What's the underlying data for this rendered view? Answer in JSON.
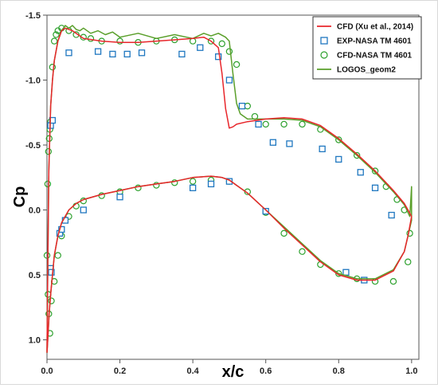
{
  "chart_data": {
    "type": "line",
    "xlabel": "x/c",
    "ylabel": "Cp",
    "xlim": [
      0,
      1.02
    ],
    "ylim": [
      -1.5,
      1.15
    ],
    "y_reversed": true,
    "x_ticks": [
      0,
      0.2,
      0.4,
      0.6,
      0.8,
      1.0
    ],
    "x_tick_labels": [
      "0.0",
      "0.2",
      "0.4",
      "0.6",
      "0.8",
      "1.0"
    ],
    "y_ticks": [
      -1.5,
      -1.0,
      -0.5,
      0.0,
      0.5,
      1.0
    ],
    "y_tick_labels": [
      "-1.5",
      "-1.0",
      "-0.5",
      "0.0",
      "0.5",
      "1.0"
    ],
    "grid": false,
    "legend_placement": "top-right",
    "series": [
      {
        "name": "CFD (Xu et al., 2014)",
        "kind": "line",
        "color": "#e8262b",
        "x": [
          0.0,
          0.002,
          0.005,
          0.01,
          0.015,
          0.02,
          0.03,
          0.04,
          0.05,
          0.07,
          0.1,
          0.15,
          0.2,
          0.25,
          0.3,
          0.35,
          0.4,
          0.43,
          0.45,
          0.47,
          0.48,
          0.49,
          0.5,
          0.51,
          0.52,
          0.55,
          0.6,
          0.65,
          0.7,
          0.75,
          0.8,
          0.85,
          0.9,
          0.95,
          0.98,
          0.99,
          1.0,
          1.0,
          0.99,
          0.98,
          0.95,
          0.9,
          0.85,
          0.8,
          0.75,
          0.7,
          0.65,
          0.6,
          0.55,
          0.52,
          0.5,
          0.48,
          0.45,
          0.4,
          0.35,
          0.3,
          0.25,
          0.2,
          0.15,
          0.1,
          0.08,
          0.06,
          0.04,
          0.03,
          0.02,
          0.015,
          0.01,
          0.006,
          0.003,
          0.001,
          0.0
        ],
        "y": [
          1.1,
          0.5,
          -0.3,
          -0.8,
          -1.0,
          -1.15,
          -1.3,
          -1.38,
          -1.4,
          -1.38,
          -1.32,
          -1.3,
          -1.29,
          -1.29,
          -1.3,
          -1.31,
          -1.32,
          -1.33,
          -1.3,
          -1.25,
          -1.05,
          -0.78,
          -0.63,
          -0.64,
          -0.66,
          -0.68,
          -0.7,
          -0.71,
          -0.7,
          -0.65,
          -0.55,
          -0.43,
          -0.3,
          -0.15,
          -0.05,
          0.0,
          0.05,
          0.05,
          0.2,
          0.32,
          0.47,
          0.54,
          0.54,
          0.5,
          0.4,
          0.27,
          0.14,
          0.0,
          -0.13,
          -0.19,
          -0.23,
          -0.25,
          -0.26,
          -0.25,
          -0.22,
          -0.2,
          -0.18,
          -0.15,
          -0.12,
          -0.08,
          -0.05,
          0.0,
          0.1,
          0.2,
          0.35,
          0.5,
          0.65,
          0.8,
          0.95,
          1.05,
          1.1
        ]
      },
      {
        "name": "EXP-NASA TM 4601",
        "kind": "square",
        "color": "#1f77c0",
        "x": [
          0.01,
          0.015,
          0.06,
          0.14,
          0.18,
          0.22,
          0.26,
          0.37,
          0.42,
          0.47,
          0.5,
          0.535,
          0.58,
          0.62,
          0.665,
          0.755,
          0.8,
          0.86,
          0.9,
          0.945,
          0.01,
          0.012,
          0.035,
          0.04,
          0.05,
          0.1,
          0.2,
          0.4,
          0.45,
          0.5,
          0.6,
          0.82,
          0.87
        ],
        "y": [
          -0.65,
          -0.69,
          -1.21,
          -1.22,
          -1.2,
          -1.2,
          -1.21,
          -1.2,
          -1.25,
          -1.18,
          -1.0,
          -0.8,
          -0.66,
          -0.52,
          -0.51,
          -0.47,
          -0.39,
          -0.29,
          -0.17,
          0.04,
          0.45,
          0.48,
          0.18,
          0.15,
          0.08,
          0.0,
          -0.1,
          -0.17,
          -0.2,
          -0.22,
          0.01,
          0.48,
          0.54
        ]
      },
      {
        "name": "CFD-NASA TM 4601",
        "kind": "circle",
        "color": "#2ca02c",
        "x": [
          0.0,
          0.002,
          0.004,
          0.006,
          0.008,
          0.01,
          0.015,
          0.02,
          0.025,
          0.03,
          0.04,
          0.06,
          0.08,
          0.1,
          0.12,
          0.15,
          0.2,
          0.25,
          0.3,
          0.35,
          0.4,
          0.45,
          0.48,
          0.5,
          0.52,
          0.55,
          0.57,
          0.6,
          0.65,
          0.7,
          0.75,
          0.8,
          0.85,
          0.9,
          0.93,
          0.96,
          0.98,
          0.995,
          0.003,
          0.005,
          0.008,
          0.012,
          0.02,
          0.03,
          0.04,
          0.06,
          0.08,
          0.1,
          0.15,
          0.2,
          0.25,
          0.3,
          0.35,
          0.4,
          0.45,
          0.5,
          0.55,
          0.6,
          0.65,
          0.7,
          0.75,
          0.8,
          0.85,
          0.9,
          0.95,
          0.99
        ],
        "y": [
          0.35,
          -0.2,
          -0.45,
          -0.55,
          -0.62,
          -0.68,
          -1.1,
          -1.3,
          -1.35,
          -1.38,
          -1.4,
          -1.38,
          -1.35,
          -1.33,
          -1.32,
          -1.3,
          -1.3,
          -1.29,
          -1.3,
          -1.31,
          -1.3,
          -1.3,
          -1.28,
          -1.22,
          -1.12,
          -0.8,
          -0.72,
          -0.66,
          -0.66,
          -0.66,
          -0.62,
          -0.54,
          -0.42,
          -0.3,
          -0.18,
          -0.08,
          0.0,
          0.18,
          0.65,
          0.8,
          0.95,
          0.7,
          0.55,
          0.35,
          0.2,
          0.05,
          -0.03,
          -0.07,
          -0.11,
          -0.14,
          -0.17,
          -0.19,
          -0.21,
          -0.22,
          -0.23,
          -0.22,
          -0.14,
          0.02,
          0.18,
          0.32,
          0.42,
          0.49,
          0.53,
          0.55,
          0.55,
          0.4
        ]
      },
      {
        "name": "LOGOS_geom2",
        "kind": "line",
        "color": "#5a9f2a",
        "x": [
          0.0,
          0.002,
          0.005,
          0.01,
          0.015,
          0.02,
          0.03,
          0.04,
          0.05,
          0.06,
          0.07,
          0.08,
          0.09,
          0.1,
          0.12,
          0.14,
          0.16,
          0.18,
          0.2,
          0.25,
          0.3,
          0.35,
          0.4,
          0.43,
          0.45,
          0.47,
          0.49,
          0.5,
          0.51,
          0.52,
          0.53,
          0.55,
          0.6,
          0.65,
          0.7,
          0.75,
          0.8,
          0.85,
          0.9,
          0.95,
          0.98,
          0.995,
          1.0,
          1.0,
          0.99,
          0.98,
          0.95,
          0.9,
          0.85,
          0.8,
          0.75,
          0.7,
          0.65,
          0.6,
          0.55,
          0.52,
          0.5,
          0.48,
          0.45,
          0.4,
          0.35,
          0.3,
          0.25,
          0.2,
          0.15,
          0.1,
          0.08,
          0.06,
          0.04,
          0.03,
          0.02,
          0.015,
          0.01,
          0.006,
          0.003,
          0.001,
          0.0
        ],
        "y": [
          1.1,
          0.5,
          -0.3,
          -0.8,
          -1.0,
          -1.15,
          -1.3,
          -1.38,
          -1.42,
          -1.4,
          -1.42,
          -1.39,
          -1.38,
          -1.4,
          -1.36,
          -1.38,
          -1.35,
          -1.37,
          -1.33,
          -1.36,
          -1.32,
          -1.35,
          -1.32,
          -1.36,
          -1.34,
          -1.36,
          -1.33,
          -1.3,
          -1.05,
          -0.82,
          -0.74,
          -0.7,
          -0.7,
          -0.7,
          -0.69,
          -0.64,
          -0.54,
          -0.42,
          -0.29,
          -0.14,
          -0.04,
          0.05,
          -0.18,
          0.08,
          0.2,
          0.32,
          0.46,
          0.53,
          0.53,
          0.49,
          0.39,
          0.26,
          0.13,
          0.0,
          -0.13,
          -0.19,
          -0.23,
          -0.25,
          -0.26,
          -0.25,
          -0.22,
          -0.2,
          -0.18,
          -0.15,
          -0.12,
          -0.08,
          -0.05,
          0.0,
          0.1,
          0.2,
          0.35,
          0.5,
          0.65,
          0.8,
          0.95,
          1.05,
          1.1
        ]
      }
    ]
  }
}
